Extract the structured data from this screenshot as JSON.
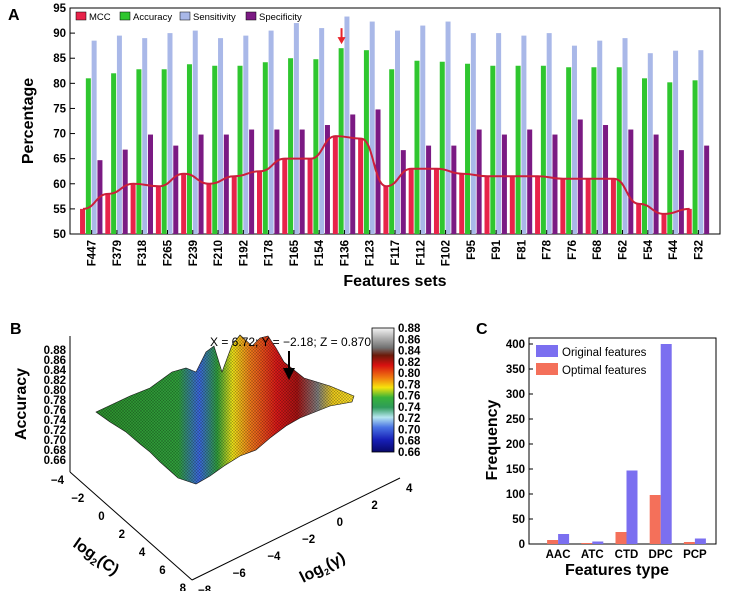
{
  "chart_data": [
    {
      "panel": "A",
      "type": "bar",
      "xlabel": "Features sets",
      "ylabel": "Percentage",
      "ylim": [
        50,
        95
      ],
      "yticks": [
        50,
        55,
        60,
        65,
        70,
        75,
        80,
        85,
        90,
        95
      ],
      "categories": [
        "F447",
        "F379",
        "F318",
        "F265",
        "F239",
        "F210",
        "F192",
        "F178",
        "F165",
        "F154",
        "F136",
        "F123",
        "F117",
        "F112",
        "F102",
        "F95",
        "F91",
        "F81",
        "F78",
        "F76",
        "F68",
        "F62",
        "F54",
        "F44",
        "F32"
      ],
      "series": [
        {
          "name": "MCC",
          "color": "#e8234a",
          "values": [
            55,
            58,
            60,
            59.5,
            62,
            60,
            61.5,
            62.5,
            65,
            65,
            69.5,
            69,
            59.5,
            63,
            63,
            62,
            61.5,
            61.5,
            61.5,
            61,
            61,
            61,
            56,
            54,
            55
          ]
        },
        {
          "name": "Accuracy",
          "color": "#2fc62f",
          "values": [
            81,
            82,
            82.8,
            82.8,
            83.8,
            83.5,
            83.5,
            84.2,
            85,
            84.8,
            87,
            86.6,
            82.8,
            84.5,
            84.3,
            83.9,
            83.5,
            83.5,
            83.5,
            83.2,
            83.2,
            83.2,
            81,
            80.2,
            80.6
          ]
        },
        {
          "name": "Sensitivity",
          "color": "#a9b8e8",
          "values": [
            88.5,
            89.5,
            89,
            90,
            90.5,
            89,
            89.5,
            90.5,
            92,
            91,
            93.3,
            92.3,
            90.5,
            91.5,
            92.3,
            90,
            90,
            89.5,
            90,
            87.5,
            88.5,
            89,
            86,
            86.5,
            86.6
          ]
        },
        {
          "name": "Specificity",
          "color": "#7b1a83",
          "values": [
            64.7,
            66.8,
            69.8,
            67.6,
            69.8,
            69.8,
            70.8,
            70.8,
            70.8,
            71.7,
            73.8,
            74.8,
            66.7,
            67.6,
            67.6,
            70.8,
            69.8,
            70.8,
            69.8,
            72.8,
            71.7,
            70.8,
            69.8,
            66.7,
            67.6
          ]
        }
      ],
      "trend_line": {
        "series": "MCC",
        "color": "#cc1f3a"
      },
      "annotation": {
        "category": "F136",
        "symbol": "arrow",
        "color": "#e8232a"
      }
    },
    {
      "panel": "B",
      "type": "surface3d",
      "zlabel": "Accuracy",
      "xlabel": "log2(C)",
      "ylabel": "log2(γ)",
      "xlabel_base": "log",
      "xlabel_sub": "2",
      "xlabel_rest": "(C)",
      "ylabel_base": "log",
      "ylabel_sub": "2",
      "ylabel_rest": "(γ)",
      "xticks": [
        "-4",
        "-2",
        "0",
        "2",
        "4",
        "6",
        "8"
      ],
      "yticks": [
        "4",
        "2",
        "0",
        "-2",
        "-4",
        "-6",
        "-8"
      ],
      "zticks": [
        "0.66",
        "0.68",
        "0.70",
        "0.72",
        "0.74",
        "0.76",
        "0.78",
        "0.80",
        "0.82",
        "0.84",
        "0.86",
        "0.88"
      ],
      "colorbar_ticks": [
        "0.88",
        "0.86",
        "0.84",
        "0.82",
        "0.80",
        "0.78",
        "0.76",
        "0.74",
        "0.72",
        "0.70",
        "0.68",
        "0.66"
      ],
      "colorbar_range": [
        0.66,
        0.88
      ],
      "annotation": "X = 6.72; Y = −2.18; Z = 0.870"
    },
    {
      "panel": "C",
      "type": "bar",
      "xlabel": "Features type",
      "ylabel": "Frequency",
      "ylim": [
        0,
        400
      ],
      "yticks": [
        0,
        50,
        100,
        150,
        200,
        250,
        300,
        350,
        400
      ],
      "categories": [
        "AAC",
        "ATC",
        "CTD",
        "DPC",
        "PCP"
      ],
      "series": [
        {
          "name": "Optimal features",
          "color": "#f4705a",
          "values": [
            8,
            2,
            24,
            98,
            4
          ]
        },
        {
          "name": "Original features",
          "color": "#7b6ff0",
          "values": [
            20,
            5,
            147,
            400,
            11
          ]
        }
      ],
      "legend": [
        "Original features",
        "Optimal features"
      ]
    }
  ]
}
